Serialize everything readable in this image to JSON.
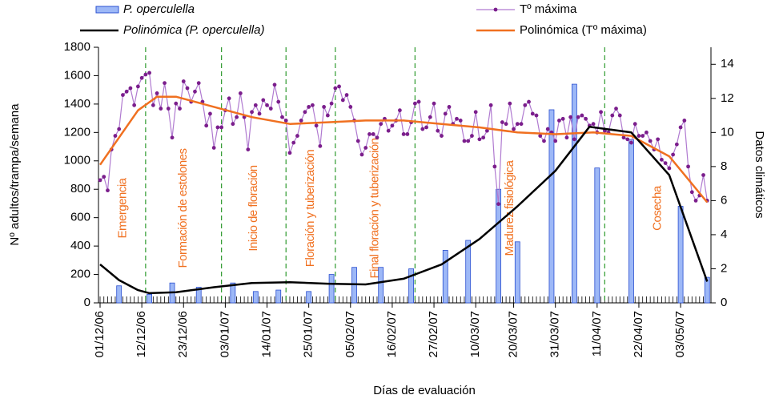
{
  "chart_data": {
    "type": "bar",
    "xlabel": "Días de evaluación",
    "ylabel": "Nº adultos/trampa/semana",
    "y2label": "Datos climáticos",
    "xlim": [
      0,
      161
    ],
    "xticks": [
      {
        "value": 0,
        "label": "01/12/06"
      },
      {
        "value": 11,
        "label": "12/12/06"
      },
      {
        "value": 22,
        "label": "23/12/06"
      },
      {
        "value": 33,
        "label": "03/01/07"
      },
      {
        "value": 44,
        "label": "14/01/07"
      },
      {
        "value": 55,
        "label": "25/01/07"
      },
      {
        "value": 66,
        "label": "05/02/07"
      },
      {
        "value": 77,
        "label": "16/02/07"
      },
      {
        "value": 88,
        "label": "27/02/07"
      },
      {
        "value": 99,
        "label": "10/03/07"
      },
      {
        "value": 109,
        "label": "20/03/07"
      },
      {
        "value": 120,
        "label": "31/03/07"
      },
      {
        "value": 131,
        "label": "11/04/07"
      },
      {
        "value": 142,
        "label": "22/04/07"
      },
      {
        "value": 153,
        "label": "03/05/07"
      }
    ],
    "ylim": [
      0,
      1800
    ],
    "yticks": [
      0,
      200,
      400,
      600,
      800,
      1000,
      1200,
      1400,
      1600,
      1800
    ],
    "y2lim": [
      0,
      15
    ],
    "y2ticks": [
      0,
      2,
      4,
      6,
      8,
      10,
      12,
      14
    ],
    "phases": [
      {
        "label": "Emergencia",
        "start": 0
      },
      {
        "label": "Formación de estolones",
        "start": 12
      },
      {
        "label": "Inicio de floración",
        "start": 32
      },
      {
        "label": "Floración y tuberización",
        "start": 49
      },
      {
        "label": "Final floración y tuberización",
        "start": 62
      },
      {
        "label": "Madurez fisiológica",
        "start": 83
      },
      {
        "label": "Cosecha",
        "start": 133
      }
    ],
    "series": [
      {
        "name": "P. operculella",
        "type": "bar",
        "color": "#9db8f7",
        "x": [
          5,
          13,
          19,
          26,
          35,
          41,
          47,
          55,
          61,
          67,
          74,
          82,
          91,
          97,
          105,
          110,
          119,
          125,
          131,
          140,
          153,
          160
        ],
        "values": [
          120,
          60,
          140,
          110,
          140,
          80,
          90,
          80,
          200,
          250,
          250,
          240,
          370,
          440,
          800,
          430,
          1360,
          1540,
          950,
          1150,
          680,
          180
        ]
      },
      {
        "name": "Tº máxima",
        "type": "line",
        "axis": "y2",
        "color": "#b07ad0",
        "marker": "#7b1e8c",
        "x": [
          0,
          1,
          2,
          3,
          4,
          5,
          6,
          7,
          8,
          9,
          10,
          11,
          12,
          13,
          14,
          15,
          16,
          17,
          18,
          19,
          20,
          21,
          22,
          23,
          24,
          25,
          26,
          27,
          28,
          29,
          30,
          31,
          32,
          33,
          34,
          35,
          36,
          37,
          38,
          39,
          40,
          41,
          42,
          43,
          44,
          45,
          46,
          47,
          48,
          49,
          50,
          51,
          52,
          53,
          54,
          55,
          56,
          57,
          58,
          59,
          60,
          61,
          62,
          63,
          64,
          65,
          66,
          67,
          68,
          69,
          70,
          71,
          72,
          73,
          74,
          75,
          76,
          77,
          78,
          79,
          80,
          81,
          82,
          83,
          84,
          85,
          86,
          87,
          88,
          89,
          90,
          91,
          92,
          93,
          94,
          95,
          96,
          97,
          98,
          99,
          100,
          101,
          102,
          103,
          104,
          105,
          106,
          107,
          108,
          109,
          110,
          111,
          112,
          113,
          114,
          115,
          116,
          117,
          118,
          119,
          120,
          121,
          122,
          123,
          124,
          125,
          126,
          127,
          128,
          129,
          130,
          131,
          132,
          133,
          134,
          135,
          136,
          137,
          138,
          139,
          140,
          141,
          142,
          143,
          144,
          145,
          146,
          147,
          148,
          149,
          150,
          151,
          152,
          153,
          154,
          155,
          156,
          157,
          158,
          159,
          160
        ],
        "values": [
          7.2,
          7.4,
          6.6,
          9.0,
          9.8,
          10.2,
          12.2,
          12.4,
          12.6,
          11.6,
          12.7,
          13.2,
          13.4,
          13.5,
          11.6,
          12.3,
          11.4,
          12.9,
          11.4,
          9.7,
          11.7,
          11.4,
          13.0,
          12.6,
          11.8,
          12.4,
          12.9,
          11.8,
          10.4,
          11.1,
          9.1,
          10.3,
          10.3,
          11.3,
          12.0,
          10.5,
          10.9,
          12.3,
          10.9,
          9.0,
          11.2,
          11.6,
          11.1,
          11.9,
          11.6,
          11.4,
          12.8,
          11.8,
          10.9,
          10.7,
          8.8,
          9.4,
          9.8,
          10.7,
          11.2,
          11.5,
          11.6,
          10.4,
          9.2,
          11.5,
          11.0,
          11.7,
          12.6,
          12.7,
          11.9,
          12.2,
          11.5,
          10.7,
          9.5,
          8.7,
          9.1,
          9.9,
          9.9,
          9.7,
          10.5,
          10.8,
          10.1,
          10.4,
          10.7,
          11.3,
          9.9,
          9.9,
          10.6,
          11.7,
          11.8,
          10.2,
          10.3,
          10.9,
          11.7,
          10.1,
          9.8,
          11.1,
          11.5,
          10.5,
          10.8,
          10.7,
          9.5,
          9.5,
          9.8,
          11.2,
          9.6,
          9.7,
          10.1,
          11.6,
          8.0,
          5.8,
          10.6,
          10.5,
          11.7,
          10.2,
          10.5,
          10.5,
          11.6,
          11.8,
          11.1,
          11.0,
          9.8,
          9.5,
          10.2,
          10.0,
          9.5,
          10.7,
          10.8,
          9.7,
          10.9,
          9.6,
          10.9,
          11.0,
          10.8,
          10.4,
          10.5,
          10.0,
          11.2,
          10.1,
          10.0,
          11.0,
          11.4,
          11.0,
          9.7,
          9.6,
          9.4,
          10.5,
          9.8,
          9.8,
          10.0,
          9.5,
          9.0,
          9.6,
          8.4,
          8.2,
          7.9,
          8.7,
          9.3,
          10.3,
          10.7,
          8.0,
          6.5,
          6.0,
          6.3,
          7.5,
          6.0
        ]
      },
      {
        "name": "Polinómica (P. operculella)",
        "type": "line",
        "color": "#000000",
        "x": [
          0,
          5,
          10,
          13,
          20,
          30,
          40,
          50,
          60,
          70,
          80,
          90,
          100,
          110,
          120,
          129,
          140,
          150,
          160
        ],
        "values": [
          271,
          160,
          90,
          68,
          75,
          110,
          140,
          145,
          135,
          130,
          170,
          270,
          450,
          680,
          930,
          1240,
          1200,
          900,
          150
        ]
      },
      {
        "name": "Polinómica (Tº máxima)",
        "type": "line",
        "axis": "y2",
        "color": "#f07020",
        "x": [
          0,
          10,
          15,
          20,
          30,
          40,
          50,
          60,
          70,
          80,
          90,
          100,
          110,
          120,
          130,
          140,
          150,
          160
        ],
        "values": [
          8.1,
          11.3,
          12.1,
          12.1,
          11.5,
          10.9,
          10.5,
          10.6,
          10.7,
          10.7,
          10.5,
          10.3,
          10.0,
          9.9,
          10.0,
          9.8,
          8.6,
          5.9
        ]
      }
    ]
  }
}
